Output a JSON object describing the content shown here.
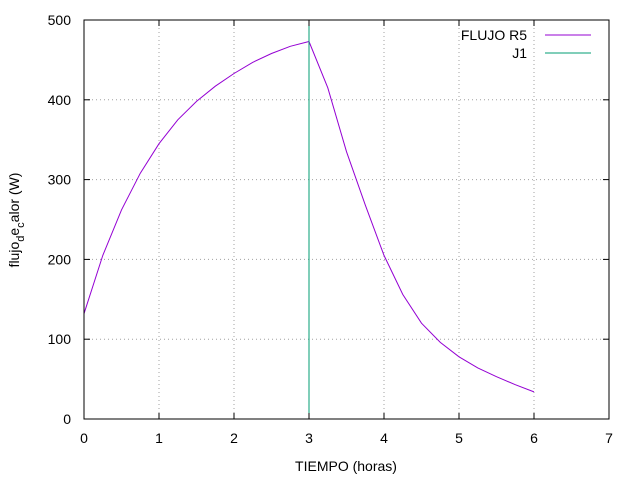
{
  "chart_data": {
    "type": "line",
    "xlabel": "TIEMPO (horas)",
    "ylabel_parts": [
      "flujo",
      "d",
      "e",
      "c",
      "alor (W)"
    ],
    "xlim": [
      0,
      7
    ],
    "ylim": [
      0,
      500
    ],
    "xticks": [
      0,
      1,
      2,
      3,
      4,
      5,
      6,
      7
    ],
    "yticks": [
      0,
      100,
      200,
      300,
      400,
      500
    ],
    "grid": true,
    "legend_position": "top-right",
    "series": [
      {
        "name": "FLUJO R5",
        "color": "#9400d3",
        "kind": "line",
        "x": [
          0,
          0.25,
          0.5,
          0.75,
          1,
          1.25,
          1.5,
          1.75,
          2,
          2.25,
          2.5,
          2.75,
          3,
          3.25,
          3.5,
          3.75,
          4,
          4.25,
          4.5,
          4.75,
          5,
          5.25,
          5.5,
          5.75,
          6
        ],
        "y": [
          132,
          205,
          262,
          308,
          345,
          375,
          398,
          417,
          433,
          447,
          458,
          467,
          473,
          415,
          335,
          268,
          205,
          156,
          120,
          96,
          78,
          64,
          53,
          43,
          34
        ]
      },
      {
        "name": "J1",
        "color": "#009e73",
        "kind": "vline",
        "x_value": 3
      }
    ]
  }
}
